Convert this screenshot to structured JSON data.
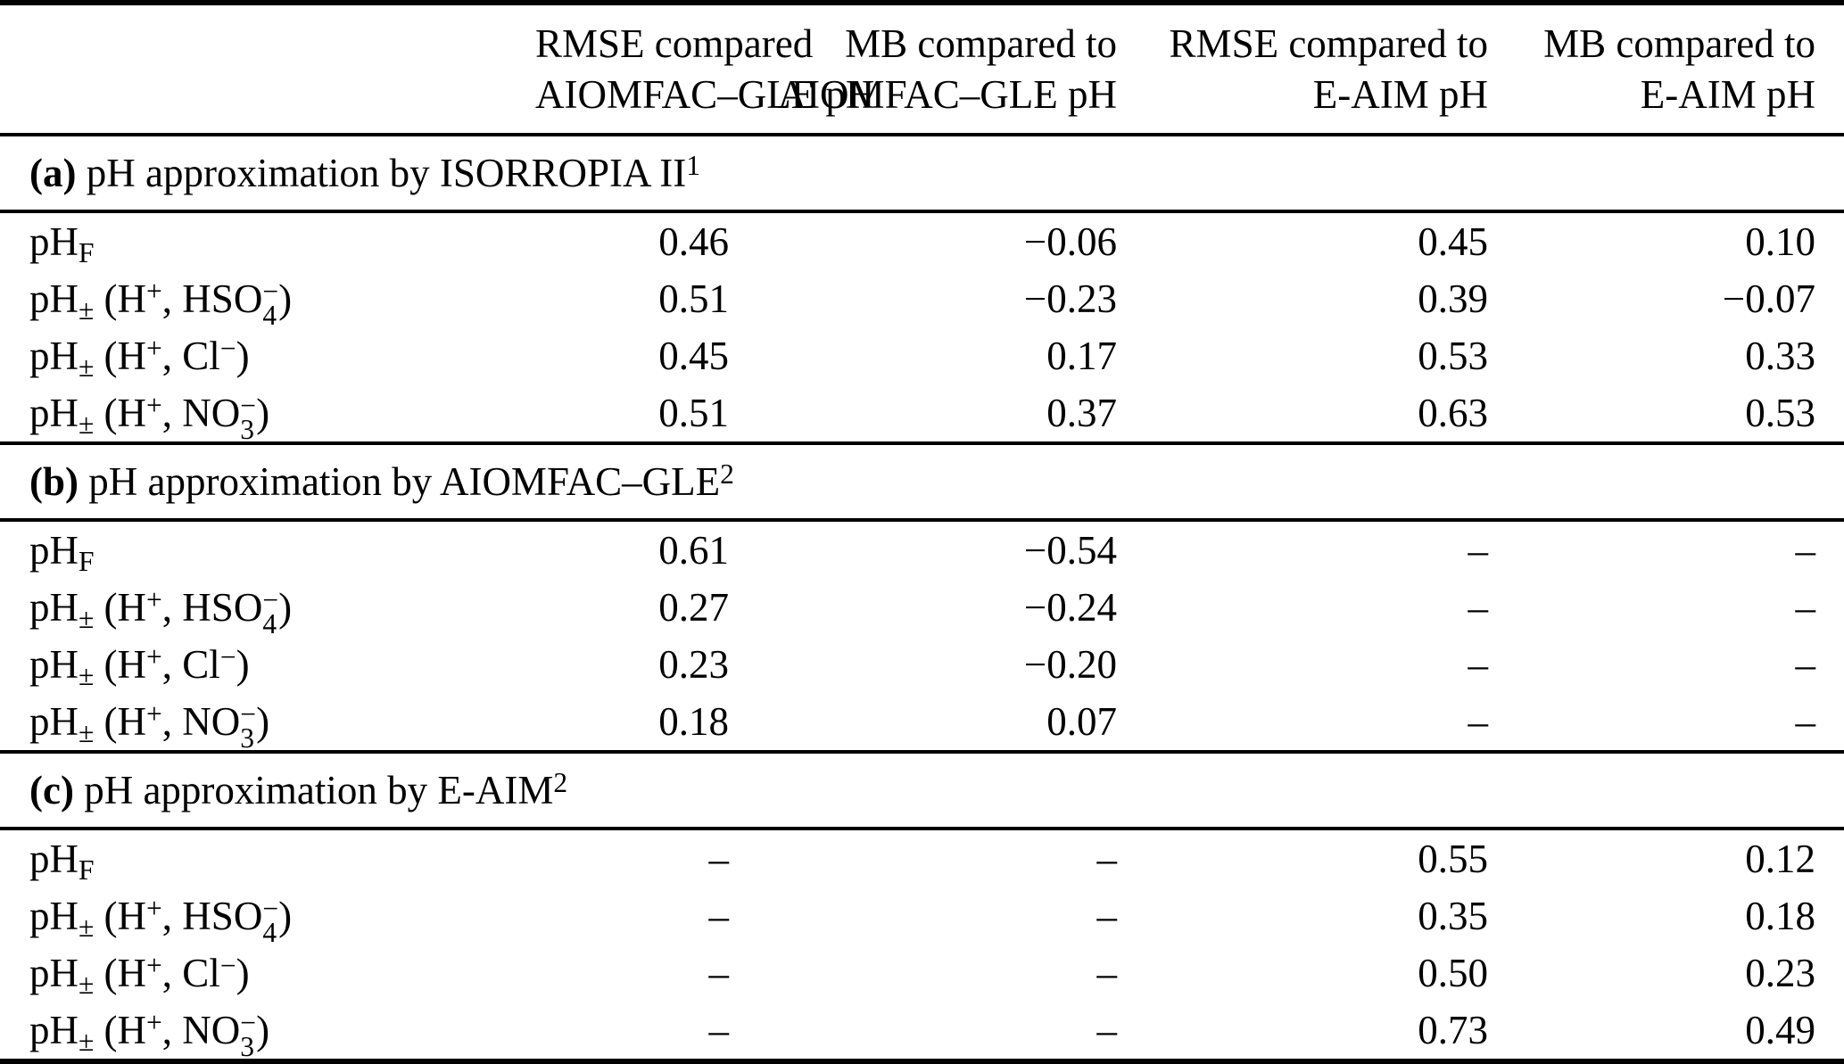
{
  "page": {
    "background_color": "#ffffff",
    "text_color": "#000000",
    "rule_color": "#000000"
  },
  "table": {
    "header": {
      "columns": [
        {
          "line1": "RMSE compared",
          "line2": "AIOMFAC–GLE pH"
        },
        {
          "line1": "MB compared to",
          "line2": "AIOMFAC–GLE pH"
        },
        {
          "line1": "RMSE compared to",
          "line2": "E-AIM pH"
        },
        {
          "line1": "MB compared to",
          "line2": "E-AIM pH"
        }
      ]
    },
    "sections": [
      {
        "title_parts": [
          {
            "b": "(a)"
          },
          {
            "t": " pH approximation by ISORROPIA II"
          },
          {
            "sup": "1"
          }
        ],
        "rows": [
          {
            "label_parts": [
              {
                "t": "pH"
              },
              {
                "sub": "F"
              }
            ],
            "values": [
              "0.46",
              "−0.06",
              "0.45",
              "0.10"
            ]
          },
          {
            "label_parts": [
              {
                "t": "pH"
              },
              {
                "sub": "±"
              },
              {
                "t": " (H"
              },
              {
                "sup": "+"
              },
              {
                "t": ", HSO"
              },
              {
                "stack": {
                  "top": "−",
                  "bottom": "4"
                }
              },
              {
                "t": ")"
              }
            ],
            "values": [
              "0.51",
              "−0.23",
              "0.39",
              "−0.07"
            ]
          },
          {
            "label_parts": [
              {
                "t": "pH"
              },
              {
                "sub": "±"
              },
              {
                "t": " (H"
              },
              {
                "sup": "+"
              },
              {
                "t": ", Cl"
              },
              {
                "sup": "−"
              },
              {
                "t": ")"
              }
            ],
            "values": [
              "0.45",
              "0.17",
              "0.53",
              "0.33"
            ]
          },
          {
            "label_parts": [
              {
                "t": "pH"
              },
              {
                "sub": "±"
              },
              {
                "t": " (H"
              },
              {
                "sup": "+"
              },
              {
                "t": ", NO"
              },
              {
                "stack": {
                  "top": "−",
                  "bottom": "3"
                }
              },
              {
                "t": ")"
              }
            ],
            "values": [
              "0.51",
              "0.37",
              "0.63",
              "0.53"
            ]
          }
        ]
      },
      {
        "title_parts": [
          {
            "b": "(b)"
          },
          {
            "t": " pH approximation by AIOMFAC–GLE"
          },
          {
            "sup": "2"
          }
        ],
        "rows": [
          {
            "label_parts": [
              {
                "t": "pH"
              },
              {
                "sub": "F"
              }
            ],
            "values": [
              "0.61",
              "−0.54",
              "–",
              "–"
            ]
          },
          {
            "label_parts": [
              {
                "t": "pH"
              },
              {
                "sub": "±"
              },
              {
                "t": " (H"
              },
              {
                "sup": "+"
              },
              {
                "t": ", HSO"
              },
              {
                "stack": {
                  "top": "−",
                  "bottom": "4"
                }
              },
              {
                "t": ")"
              }
            ],
            "values": [
              "0.27",
              "−0.24",
              "–",
              "–"
            ]
          },
          {
            "label_parts": [
              {
                "t": "pH"
              },
              {
                "sub": "±"
              },
              {
                "t": " (H"
              },
              {
                "sup": "+"
              },
              {
                "t": ", Cl"
              },
              {
                "sup": "−"
              },
              {
                "t": ")"
              }
            ],
            "values": [
              "0.23",
              "−0.20",
              "–",
              "–"
            ]
          },
          {
            "label_parts": [
              {
                "t": "pH"
              },
              {
                "sub": "±"
              },
              {
                "t": " (H"
              },
              {
                "sup": "+"
              },
              {
                "t": ", NO"
              },
              {
                "stack": {
                  "top": "−",
                  "bottom": "3"
                }
              },
              {
                "t": ")"
              }
            ],
            "values": [
              "0.18",
              "0.07",
              "–",
              "–"
            ]
          }
        ]
      },
      {
        "title_parts": [
          {
            "b": "(c)"
          },
          {
            "t": " pH approximation by E-AIM"
          },
          {
            "sup": "2"
          }
        ],
        "rows": [
          {
            "label_parts": [
              {
                "t": "pH"
              },
              {
                "sub": "F"
              }
            ],
            "values": [
              "–",
              "–",
              "0.55",
              "0.12"
            ]
          },
          {
            "label_parts": [
              {
                "t": "pH"
              },
              {
                "sub": "±"
              },
              {
                "t": " (H"
              },
              {
                "sup": "+"
              },
              {
                "t": ", HSO"
              },
              {
                "stack": {
                  "top": "−",
                  "bottom": "4"
                }
              },
              {
                "t": ")"
              }
            ],
            "values": [
              "–",
              "–",
              "0.35",
              "0.18"
            ]
          },
          {
            "label_parts": [
              {
                "t": "pH"
              },
              {
                "sub": "±"
              },
              {
                "t": " (H"
              },
              {
                "sup": "+"
              },
              {
                "t": ", Cl"
              },
              {
                "sup": "−"
              },
              {
                "t": ")"
              }
            ],
            "values": [
              "–",
              "–",
              "0.50",
              "0.23"
            ]
          },
          {
            "label_parts": [
              {
                "t": "pH"
              },
              {
                "sub": "±"
              },
              {
                "t": " (H"
              },
              {
                "sup": "+"
              },
              {
                "t": ", NO"
              },
              {
                "stack": {
                  "top": "−",
                  "bottom": "3"
                }
              },
              {
                "t": ")"
              }
            ],
            "values": [
              "–",
              "–",
              "0.73",
              "0.49"
            ]
          }
        ]
      }
    ]
  }
}
